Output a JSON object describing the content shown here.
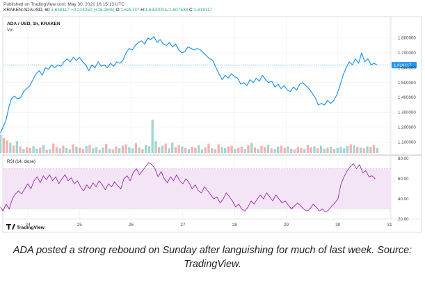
{
  "header": {
    "published": "Published on TradingView.com, May 30, 2021 16:15:13 UTC",
    "symbol": "KRAKEN:ADAUSD, 60",
    "last": "1.618117",
    "change": "+0.214250 (+15.26%)",
    "o_label": "O:",
    "o_value": "1.625737",
    "h_label": "H:",
    "h_value": "1.632000",
    "l_label": "L:",
    "l_value": "1.607533",
    "c_label": "C:",
    "c_value": "1.618117"
  },
  "price_pane": {
    "title": "ADA / USD, 1h, KRAKEN",
    "vol_label": "Vol",
    "last_price_tag": "1.618117",
    "y_ticks": [
      "1.800000",
      "1.700000",
      "1.600000",
      "1.500000",
      "1.400000",
      "1.300000",
      "1.200000",
      "1.100000"
    ]
  },
  "rsi_pane": {
    "label": "RSI (14, close)",
    "y_ticks": [
      "80.00",
      "60.00",
      "40.00",
      "20.00"
    ]
  },
  "x_ticks": [
    "24",
    "25",
    "26",
    "27",
    "28",
    "29",
    "30",
    "31"
  ],
  "logo_text": "TradingView",
  "caption": "ADA posted a strong rebound on Sunday after languishing for much of last week. Source: TradingView.",
  "colors": {
    "price_line": "#2196f3",
    "rsi_line": "#9c27b0",
    "rsi_band": "#f3e5f5",
    "vol_up": "#26a69a",
    "vol_down": "#ef5350",
    "grid": "#e9ebf0",
    "last_price_bg": "#2196f3"
  },
  "chart_data": [
    {
      "type": "line",
      "name": "ADA / USD price",
      "x_axis": "day of month (May 2021)",
      "ylim": [
        1.05,
        1.85
      ],
      "points": [
        [
          23.47,
          1.16
        ],
        [
          23.52,
          1.2
        ],
        [
          23.58,
          1.25
        ],
        [
          23.63,
          1.33
        ],
        [
          23.68,
          1.39
        ],
        [
          23.74,
          1.41
        ],
        [
          23.8,
          1.39
        ],
        [
          23.86,
          1.4
        ],
        [
          23.92,
          1.44
        ],
        [
          23.98,
          1.46
        ],
        [
          24.04,
          1.48
        ],
        [
          24.1,
          1.52
        ],
        [
          24.16,
          1.56
        ],
        [
          24.22,
          1.58
        ],
        [
          24.28,
          1.55
        ],
        [
          24.34,
          1.6
        ],
        [
          24.4,
          1.59
        ],
        [
          24.46,
          1.62
        ],
        [
          24.52,
          1.6
        ],
        [
          24.58,
          1.62
        ],
        [
          24.64,
          1.61
        ],
        [
          24.7,
          1.64
        ],
        [
          24.76,
          1.66
        ],
        [
          24.82,
          1.64
        ],
        [
          24.88,
          1.67
        ],
        [
          24.94,
          1.65
        ],
        [
          25.0,
          1.67
        ],
        [
          25.06,
          1.64
        ],
        [
          25.12,
          1.62
        ],
        [
          25.18,
          1.58
        ],
        [
          25.24,
          1.62
        ],
        [
          25.3,
          1.6
        ],
        [
          25.36,
          1.64
        ],
        [
          25.42,
          1.61
        ],
        [
          25.48,
          1.62
        ],
        [
          25.54,
          1.6
        ],
        [
          25.6,
          1.63
        ],
        [
          25.66,
          1.61
        ],
        [
          25.72,
          1.64
        ],
        [
          25.78,
          1.63
        ],
        [
          25.84,
          1.65
        ],
        [
          25.9,
          1.7
        ],
        [
          25.96,
          1.73
        ],
        [
          26.02,
          1.72
        ],
        [
          26.08,
          1.75
        ],
        [
          26.14,
          1.77
        ],
        [
          26.2,
          1.78
        ],
        [
          26.26,
          1.76
        ],
        [
          26.32,
          1.8
        ],
        [
          26.38,
          1.79
        ],
        [
          26.44,
          1.81
        ],
        [
          26.5,
          1.77
        ],
        [
          26.56,
          1.79
        ],
        [
          26.62,
          1.76
        ],
        [
          26.68,
          1.75
        ],
        [
          26.74,
          1.77
        ],
        [
          26.8,
          1.74
        ],
        [
          26.86,
          1.76
        ],
        [
          26.92,
          1.72
        ],
        [
          26.98,
          1.7
        ],
        [
          27.04,
          1.71
        ],
        [
          27.1,
          1.74
        ],
        [
          27.16,
          1.73
        ],
        [
          27.22,
          1.72
        ],
        [
          27.28,
          1.73
        ],
        [
          27.34,
          1.72
        ],
        [
          27.4,
          1.7
        ],
        [
          27.46,
          1.68
        ],
        [
          27.52,
          1.66
        ],
        [
          27.58,
          1.65
        ],
        [
          27.64,
          1.6
        ],
        [
          27.7,
          1.56
        ],
        [
          27.76,
          1.52
        ],
        [
          27.82,
          1.55
        ],
        [
          27.88,
          1.53
        ],
        [
          27.94,
          1.56
        ],
        [
          28.0,
          1.54
        ],
        [
          28.06,
          1.53
        ],
        [
          28.12,
          1.49
        ],
        [
          28.18,
          1.5
        ],
        [
          28.24,
          1.48
        ],
        [
          28.3,
          1.52
        ],
        [
          28.36,
          1.5
        ],
        [
          28.42,
          1.53
        ],
        [
          28.48,
          1.51
        ],
        [
          28.54,
          1.55
        ],
        [
          28.6,
          1.52
        ],
        [
          28.66,
          1.5
        ],
        [
          28.72,
          1.51
        ],
        [
          28.78,
          1.47
        ],
        [
          28.84,
          1.49
        ],
        [
          28.9,
          1.46
        ],
        [
          28.96,
          1.48
        ],
        [
          29.02,
          1.45
        ],
        [
          29.08,
          1.44
        ],
        [
          29.14,
          1.47
        ],
        [
          29.2,
          1.45
        ],
        [
          29.26,
          1.49
        ],
        [
          29.32,
          1.5
        ],
        [
          29.38,
          1.48
        ],
        [
          29.44,
          1.46
        ],
        [
          29.5,
          1.43
        ],
        [
          29.56,
          1.4
        ],
        [
          29.62,
          1.35
        ],
        [
          29.68,
          1.36
        ],
        [
          29.74,
          1.35
        ],
        [
          29.8,
          1.38
        ],
        [
          29.86,
          1.36
        ],
        [
          29.92,
          1.38
        ],
        [
          29.98,
          1.42
        ],
        [
          30.04,
          1.48
        ],
        [
          30.1,
          1.55
        ],
        [
          30.16,
          1.6
        ],
        [
          30.22,
          1.64
        ],
        [
          30.28,
          1.62
        ],
        [
          30.34,
          1.66
        ],
        [
          30.4,
          1.63
        ],
        [
          30.46,
          1.7
        ],
        [
          30.52,
          1.64
        ],
        [
          30.58,
          1.66
        ],
        [
          30.64,
          1.62
        ],
        [
          30.7,
          1.63
        ],
        [
          30.76,
          1.618
        ]
      ]
    },
    {
      "type": "bar",
      "name": "Vol",
      "x_axis": "day of month (May 2021)",
      "values_relative": [
        0.55,
        0.45,
        0.38,
        0.3,
        0.22,
        0.35,
        0.2,
        0.12,
        0.18,
        0.15,
        0.2,
        0.13,
        0.16,
        0.24,
        0.1,
        0.12,
        0.28,
        0.18,
        0.14,
        0.22,
        0.15,
        0.11,
        0.26,
        0.19,
        0.16,
        0.12,
        0.21,
        0.24,
        0.14,
        0.18,
        0.1,
        0.16,
        0.27,
        0.13,
        0.11,
        0.2,
        0.15,
        0.22,
        0.26,
        0.18,
        0.14,
        0.29,
        0.16,
        0.12,
        0.25,
        0.2,
        1.0,
        0.35,
        0.18,
        0.22,
        0.28,
        0.14,
        0.31,
        0.18,
        0.24,
        0.2,
        0.15,
        0.12,
        0.19,
        0.16,
        0.23,
        0.11,
        0.17,
        0.28,
        0.14,
        0.12,
        0.26,
        0.18,
        0.15,
        0.2,
        0.22,
        0.13,
        0.16,
        0.19,
        0.12,
        0.24,
        0.3,
        0.17,
        0.13,
        0.21,
        0.18,
        0.25,
        0.14,
        0.12,
        0.19,
        0.22,
        0.16,
        0.2,
        0.13,
        0.11,
        0.18,
        0.15,
        0.12,
        0.24,
        0.17,
        0.2,
        0.14,
        0.22,
        0.13,
        0.16,
        0.19,
        0.12,
        0.15,
        0.18,
        0.14,
        0.21,
        0.26,
        0.23,
        0.19,
        0.16,
        0.14,
        0.2,
        0.18,
        0.24,
        0.15
      ],
      "up": [
        1,
        0,
        0,
        1,
        0,
        1,
        0,
        1,
        0,
        0,
        1,
        1,
        0,
        1,
        0,
        1,
        0,
        0,
        1,
        0,
        1,
        1,
        0,
        1,
        0,
        0,
        1,
        0,
        1,
        1,
        0,
        1,
        0,
        1,
        0,
        0,
        1,
        0,
        0,
        1,
        1,
        0,
        1,
        0,
        1,
        1,
        1,
        1,
        0,
        1,
        0,
        1,
        1,
        0,
        0,
        1,
        0,
        1,
        0,
        0,
        1,
        1,
        0,
        0,
        1,
        0,
        0,
        1,
        1,
        0,
        0,
        1,
        0,
        0,
        1,
        0,
        1,
        0,
        1,
        0,
        0,
        1,
        0,
        1,
        1,
        0,
        0,
        1,
        0,
        1,
        0,
        0,
        1,
        0,
        0,
        1,
        0,
        1,
        1,
        0,
        1,
        0,
        1,
        1,
        1,
        1,
        0,
        1,
        0,
        1,
        0,
        1,
        0,
        0,
        1
      ]
    },
    {
      "type": "line",
      "name": "RSI (14, close)",
      "x_axis": "day of month (May 2021)",
      "ylim": [
        20,
        80
      ],
      "bands": [
        30,
        70
      ],
      "points": [
        [
          23.47,
          32
        ],
        [
          23.52,
          28
        ],
        [
          23.58,
          35
        ],
        [
          23.64,
          30
        ],
        [
          23.7,
          40
        ],
        [
          23.76,
          45
        ],
        [
          23.82,
          48
        ],
        [
          23.88,
          45
        ],
        [
          23.94,
          50
        ],
        [
          24.0,
          55
        ],
        [
          24.06,
          50
        ],
        [
          24.12,
          58
        ],
        [
          24.18,
          62
        ],
        [
          24.24,
          56
        ],
        [
          24.3,
          63
        ],
        [
          24.36,
          59
        ],
        [
          24.42,
          64
        ],
        [
          24.48,
          58
        ],
        [
          24.54,
          62
        ],
        [
          24.6,
          55
        ],
        [
          24.66,
          60
        ],
        [
          24.72,
          64
        ],
        [
          24.78,
          58
        ],
        [
          24.84,
          61
        ],
        [
          24.9,
          55
        ],
        [
          24.96,
          58
        ],
        [
          25.02,
          52
        ],
        [
          25.08,
          48
        ],
        [
          25.14,
          54
        ],
        [
          25.2,
          50
        ],
        [
          25.26,
          56
        ],
        [
          25.32,
          52
        ],
        [
          25.38,
          58
        ],
        [
          25.44,
          54
        ],
        [
          25.5,
          49
        ],
        [
          25.56,
          55
        ],
        [
          25.62,
          52
        ],
        [
          25.68,
          57
        ],
        [
          25.74,
          53
        ],
        [
          25.8,
          50
        ],
        [
          25.86,
          60
        ],
        [
          25.92,
          63
        ],
        [
          25.98,
          58
        ],
        [
          26.04,
          66
        ],
        [
          26.1,
          70
        ],
        [
          26.16,
          64
        ],
        [
          26.22,
          68
        ],
        [
          26.28,
          72
        ],
        [
          26.34,
          76
        ],
        [
          26.4,
          74
        ],
        [
          26.46,
          70
        ],
        [
          26.52,
          62
        ],
        [
          26.58,
          67
        ],
        [
          26.64,
          60
        ],
        [
          26.7,
          56
        ],
        [
          26.76,
          62
        ],
        [
          26.82,
          58
        ],
        [
          26.88,
          64
        ],
        [
          26.94,
          58
        ],
        [
          27.0,
          55
        ],
        [
          27.06,
          60
        ],
        [
          27.12,
          56
        ],
        [
          27.18,
          50
        ],
        [
          27.24,
          54
        ],
        [
          27.3,
          48
        ],
        [
          27.36,
          46
        ],
        [
          27.42,
          52
        ],
        [
          27.48,
          48
        ],
        [
          27.54,
          44
        ],
        [
          27.6,
          40
        ],
        [
          27.66,
          42
        ],
        [
          27.72,
          36
        ],
        [
          27.78,
          40
        ],
        [
          27.84,
          46
        ],
        [
          27.9,
          42
        ],
        [
          27.96,
          38
        ],
        [
          28.02,
          32
        ],
        [
          28.08,
          35
        ],
        [
          28.14,
          30
        ],
        [
          28.2,
          28
        ],
        [
          28.26,
          32
        ],
        [
          28.32,
          38
        ],
        [
          28.38,
          35
        ],
        [
          28.44,
          40
        ],
        [
          28.5,
          44
        ],
        [
          28.56,
          40
        ],
        [
          28.62,
          46
        ],
        [
          28.68,
          42
        ],
        [
          28.74,
          38
        ],
        [
          28.8,
          44
        ],
        [
          28.86,
          40
        ],
        [
          28.92,
          36
        ],
        [
          28.98,
          38
        ],
        [
          29.04,
          34
        ],
        [
          29.1,
          30
        ],
        [
          29.16,
          33
        ],
        [
          29.22,
          36
        ],
        [
          29.28,
          33
        ],
        [
          29.34,
          30
        ],
        [
          29.4,
          28
        ],
        [
          29.46,
          30
        ],
        [
          29.52,
          35
        ],
        [
          29.58,
          32
        ],
        [
          29.64,
          28
        ],
        [
          29.7,
          30
        ],
        [
          29.76,
          27
        ],
        [
          29.82,
          29
        ],
        [
          29.88,
          33
        ],
        [
          29.94,
          36
        ],
        [
          30.0,
          40
        ],
        [
          30.06,
          55
        ],
        [
          30.12,
          62
        ],
        [
          30.18,
          68
        ],
        [
          30.24,
          72
        ],
        [
          30.3,
          75
        ],
        [
          30.36,
          70
        ],
        [
          30.42,
          74
        ],
        [
          30.48,
          66
        ],
        [
          30.54,
          68
        ],
        [
          30.6,
          62
        ],
        [
          30.66,
          63
        ],
        [
          30.72,
          60
        ]
      ]
    }
  ]
}
